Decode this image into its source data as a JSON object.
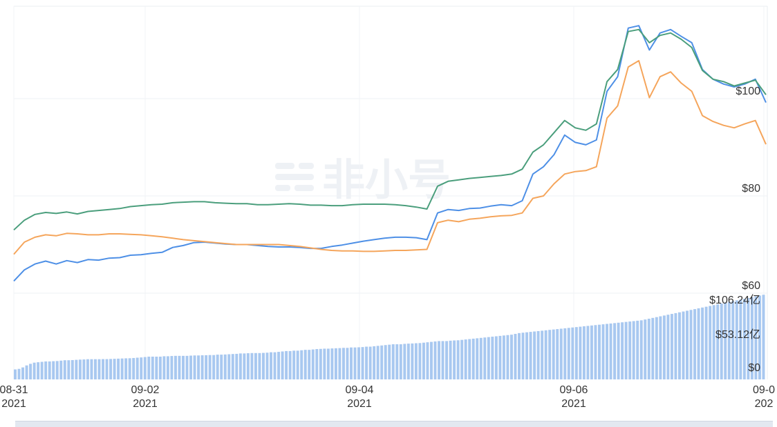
{
  "watermark": "非小号",
  "chart_data": [
    {
      "type": "line",
      "y_ticks": [
        "$60",
        "$80",
        "$100"
      ],
      "ylim": [
        60,
        119
      ],
      "x_ticks": [
        {
          "date": "08-31",
          "year": "2021"
        },
        {
          "date": "09-02",
          "year": "2021"
        },
        {
          "date": "09-04",
          "year": "2021"
        },
        {
          "date": "09-06",
          "year": "2021"
        },
        {
          "date": "09-0",
          "year": "202"
        }
      ],
      "x_range": [
        "2021-08-31",
        "2021-09-08"
      ],
      "grid": true,
      "colors": {
        "series_a": "#4d8fe6",
        "series_b": "#4a9e7c",
        "series_c": "#f5a55b"
      },
      "series": [
        {
          "color": "#4d8fe6",
          "values": [
            62.5,
            64.8,
            66.0,
            66.6,
            66.0,
            66.7,
            66.3,
            66.9,
            66.8,
            67.2,
            67.3,
            67.8,
            67.9,
            68.2,
            68.4,
            69.4,
            69.8,
            70.4,
            70.5,
            70.3,
            70.1,
            70.0,
            70.0,
            69.8,
            69.6,
            69.5,
            69.5,
            69.4,
            69.2,
            69.2,
            69.6,
            69.9,
            70.3,
            70.7,
            71.0,
            71.3,
            71.5,
            71.5,
            71.4,
            71.0,
            76.5,
            77.2,
            77.0,
            77.4,
            77.5,
            77.9,
            78.2,
            78.0,
            79.0,
            84.5,
            86.0,
            88.5,
            92.5,
            91.0,
            90.5,
            91.5,
            101.5,
            104.5,
            114.5,
            115.0,
            110.0,
            113.5,
            114.2,
            112.8,
            111.5,
            106.0,
            104.0,
            103.0,
            102.4,
            103.0,
            104.0,
            99.2
          ]
        },
        {
          "color": "#4a9e7c",
          "values": [
            73.0,
            75.0,
            76.2,
            76.6,
            76.4,
            76.7,
            76.3,
            76.8,
            77.0,
            77.2,
            77.4,
            77.8,
            78.0,
            78.2,
            78.3,
            78.6,
            78.7,
            78.8,
            78.8,
            78.6,
            78.5,
            78.4,
            78.4,
            78.2,
            78.2,
            78.3,
            78.4,
            78.3,
            78.1,
            78.1,
            78.0,
            78.0,
            78.2,
            78.3,
            78.3,
            78.3,
            78.2,
            78.0,
            77.7,
            77.3,
            82.0,
            83.0,
            83.3,
            83.6,
            83.8,
            84.0,
            84.2,
            84.5,
            85.5,
            89.0,
            90.5,
            93.0,
            95.5,
            94.0,
            93.5,
            94.8,
            103.5,
            106.0,
            113.8,
            114.2,
            111.5,
            113.0,
            113.5,
            112.2,
            110.5,
            105.8,
            104.0,
            103.5,
            102.6,
            103.2,
            103.8,
            100.8
          ]
        },
        {
          "color": "#f5a55b",
          "values": [
            68.0,
            70.5,
            71.5,
            72.0,
            71.8,
            72.3,
            72.2,
            72.0,
            72.0,
            72.2,
            72.2,
            72.1,
            72.0,
            71.8,
            71.6,
            71.3,
            71.0,
            70.8,
            70.6,
            70.4,
            70.2,
            70.0,
            70.0,
            70.0,
            70.0,
            70.0,
            69.8,
            69.6,
            69.3,
            69.0,
            68.8,
            68.7,
            68.7,
            68.6,
            68.6,
            68.7,
            68.8,
            68.8,
            68.9,
            69.0,
            74.5,
            75.0,
            74.7,
            75.2,
            75.4,
            75.7,
            75.9,
            76.0,
            76.5,
            79.5,
            80.0,
            82.5,
            84.5,
            85.0,
            85.2,
            86.0,
            96.0,
            98.5,
            106.5,
            107.8,
            100.2,
            104.5,
            105.5,
            103.2,
            101.5,
            96.5,
            95.3,
            94.5,
            94.0,
            94.8,
            95.5,
            90.6
          ]
        }
      ]
    },
    {
      "type": "bar",
      "y_ticks": [
        "$106.24亿",
        "$53.12亿",
        "$0"
      ],
      "ylim": [
        0,
        106.24
      ],
      "color": "#a8c8f0",
      "values": [
        12.5,
        13.2,
        15.0,
        17.5,
        19.5,
        21.0,
        21.5,
        22.0,
        22.5,
        22.5,
        22.8,
        23.0,
        23.5,
        24.0,
        24.0,
        24.2,
        24.5,
        24.8,
        25.0,
        25.3,
        25.3,
        25.3,
        25.3,
        25.4,
        25.4,
        25.6,
        25.8,
        26.0,
        26.2,
        26.4,
        26.5,
        26.8,
        27.2,
        27.5,
        28.0,
        28.5,
        28.5,
        28.5,
        28.5,
        29.0,
        29.0,
        29.3,
        29.5,
        29.5,
        29.5,
        29.5,
        29.8,
        30.0,
        30.0,
        30.2,
        30.3,
        30.5,
        30.5,
        31.0,
        31.0,
        31.2,
        31.5,
        31.8,
        32.0,
        32.5,
        32.5,
        32.8,
        33.0,
        33.0,
        33.0,
        33.2,
        33.5,
        34.0,
        34.0,
        34.5,
        35.0,
        35.5,
        35.5,
        36.0,
        36.0,
        36.5,
        37.0,
        37.0,
        37.5,
        38.0,
        38.2,
        38.5,
        38.5,
        38.8,
        39.0,
        39.2,
        39.5,
        39.5,
        40.0,
        40.0,
        40.2,
        40.5,
        41.0,
        41.0,
        41.5,
        42.0,
        42.5,
        43.0,
        43.5,
        44.0,
        44.0,
        44.0,
        44.5,
        44.8,
        45.0,
        45.3,
        45.5,
        46.0,
        46.5,
        47.0,
        47.5,
        48.0,
        48.0,
        48.0,
        48.5,
        48.8,
        49.0,
        49.5,
        50.0,
        50.5,
        51.0,
        51.5,
        52.0,
        52.5,
        53.0,
        53.5,
        54.0,
        54.5,
        55.0,
        55.5,
        56.0,
        57.0,
        58.0,
        58.5,
        59.0,
        59.5,
        60.0,
        60.5,
        61.0,
        61.5,
        62.0,
        62.5,
        63.0,
        63.5,
        64.0,
        64.5,
        65.0,
        65.5,
        66.0,
        66.5,
        67.0,
        67.5,
        68.0,
        68.5,
        69.0,
        69.5,
        70.0,
        70.5,
        71.0,
        71.5,
        72.0,
        72.5,
        73.0,
        73.5,
        74.0,
        75.0,
        76.0,
        77.0,
        78.0,
        79.0,
        80.0,
        81.0,
        82.0,
        83.0,
        84.0,
        85.0,
        86.0,
        87.0,
        88.0,
        89.0,
        90.0,
        91.0,
        92.0,
        93.0,
        94.0,
        95.0,
        96.0,
        97.0,
        98.0,
        99.0,
        100.0,
        101.0,
        102.0,
        103.0,
        104.0,
        105.0,
        106.0
      ]
    }
  ]
}
